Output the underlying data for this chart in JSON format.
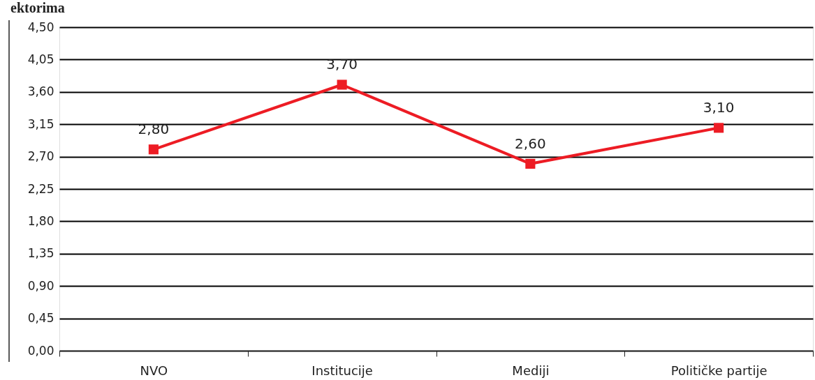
{
  "chart_data": {
    "type": "line",
    "title": "ektorima",
    "categories": [
      "NVO",
      "Institucije",
      "Mediji",
      "Političke partije"
    ],
    "series": [
      {
        "color": "#ed1c24",
        "values": [
          2.8,
          3.7,
          2.6,
          3.1
        ]
      }
    ],
    "ylim": [
      0,
      4.5
    ],
    "yticks": [
      {
        "value": 0,
        "label": "0,00"
      },
      {
        "value": 0.45,
        "label": "0,45"
      },
      {
        "value": 0.9,
        "label": "0,90"
      },
      {
        "value": 1.35,
        "label": "1,35"
      },
      {
        "value": 1.8,
        "label": "1,80"
      },
      {
        "value": 2.25,
        "label": "2,25"
      },
      {
        "value": 2.7,
        "label": "2,70"
      },
      {
        "value": 3.15,
        "label": "3,15"
      },
      {
        "value": 3.6,
        "label": "3,60"
      },
      {
        "value": 4.05,
        "label": "4,05"
      },
      {
        "value": 4.5,
        "label": "4,50"
      }
    ],
    "value_labels": [
      "2,80",
      "3,70",
      "2,60",
      "3,10"
    ],
    "grid": "y",
    "marker": "square",
    "line_style": "solid"
  }
}
